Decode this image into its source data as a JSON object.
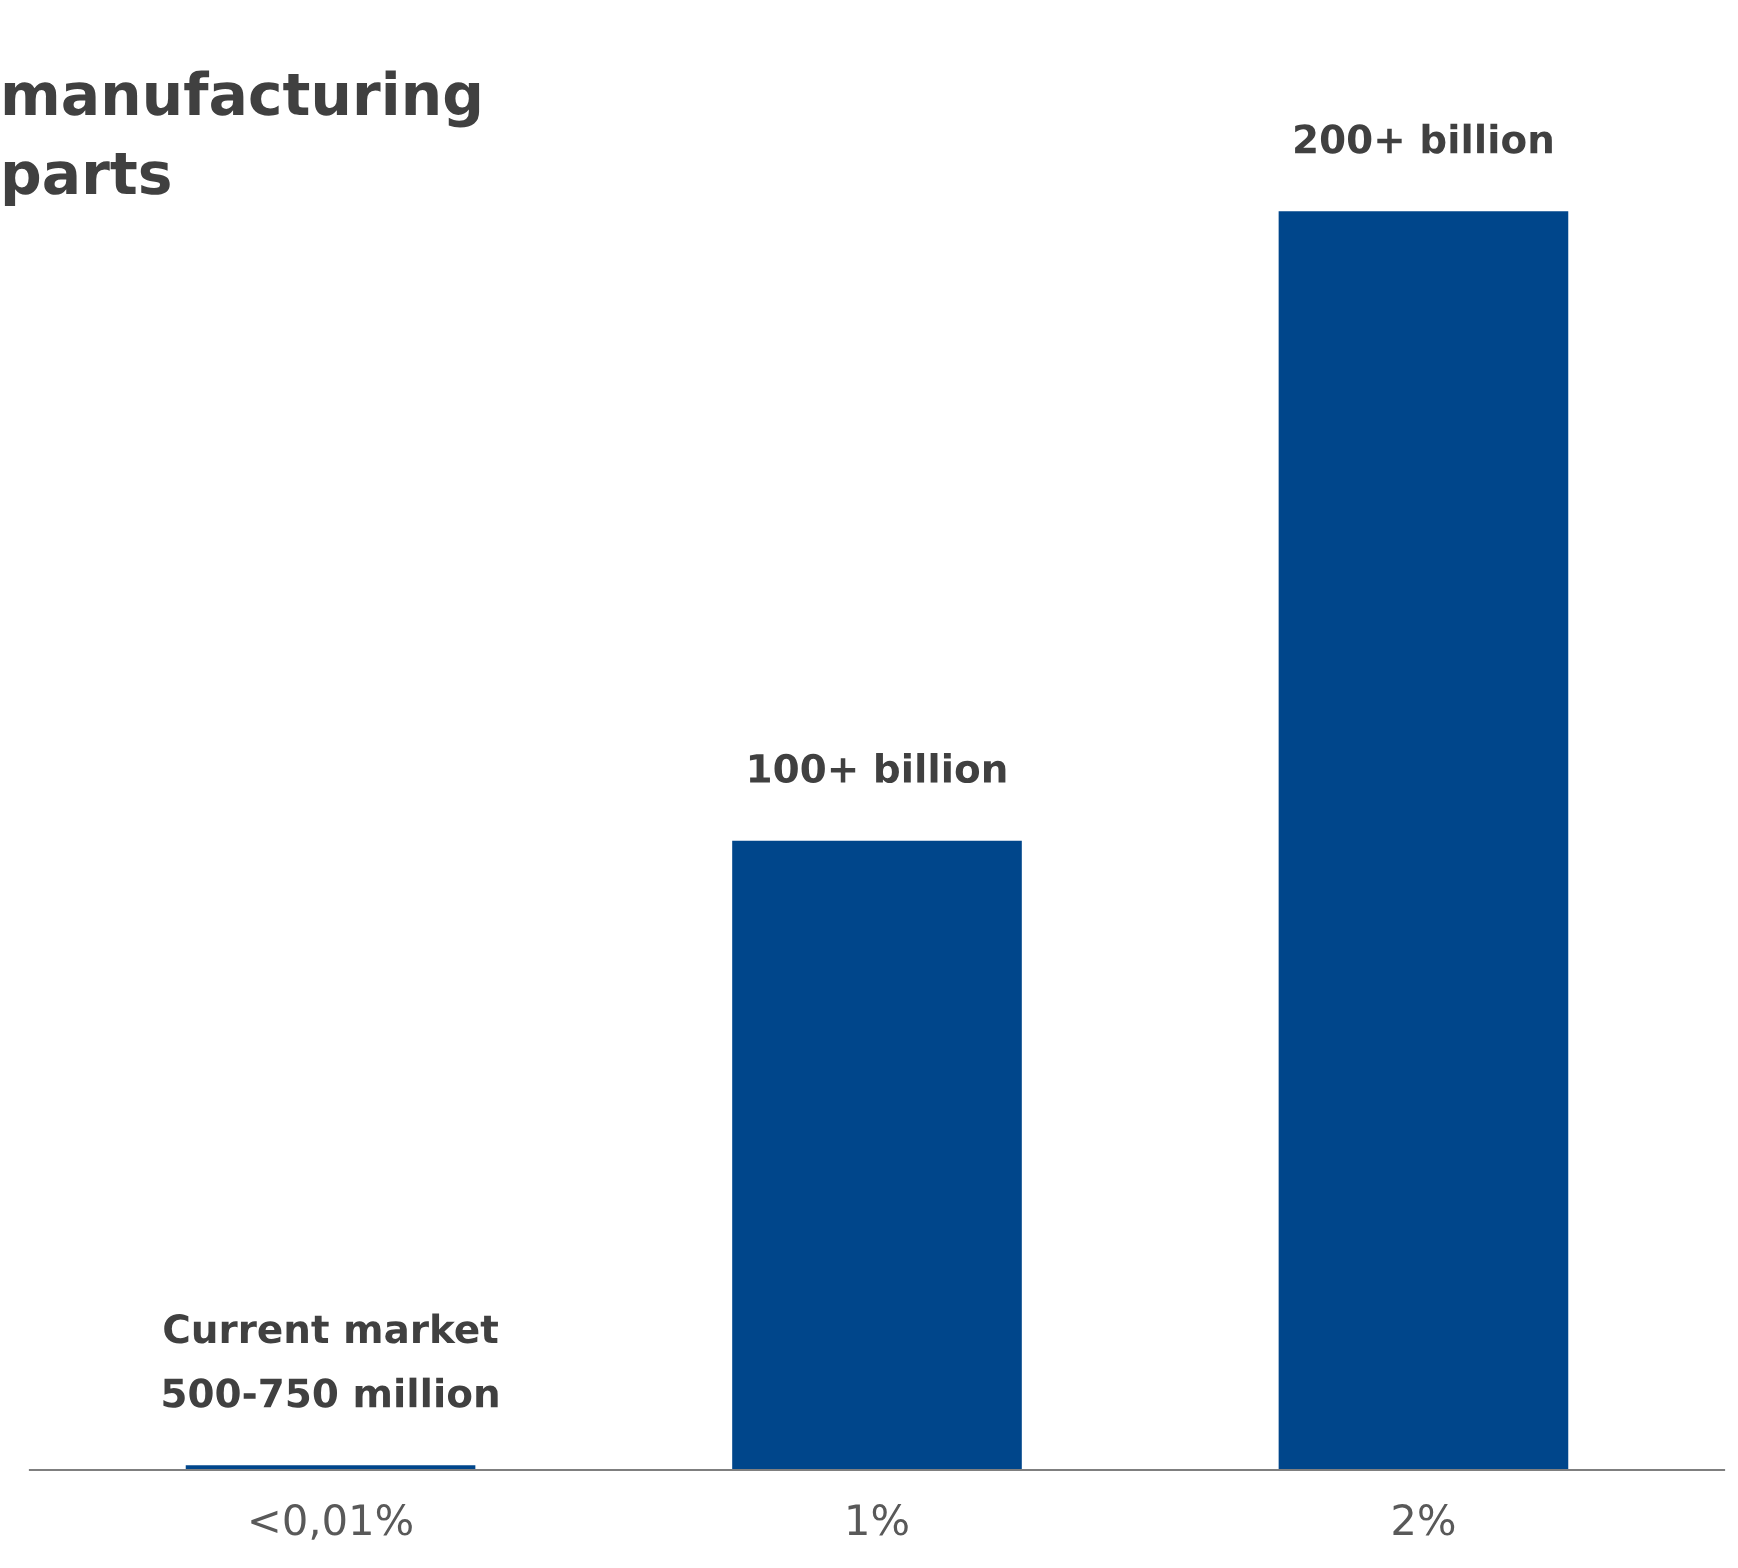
{
  "chart_data": {
    "type": "bar",
    "title": "manufacturing\nparts",
    "categories": [
      "<0,01%",
      "1%",
      "2%"
    ],
    "values": [
      0.75,
      100,
      200
    ],
    "color": "#00468b",
    "value_labels": [
      "Current market\n500-750 million",
      "100+ billion",
      "200+ billion"
    ],
    "tick_labels": "x",
    "grid": false,
    "legend": false
  }
}
